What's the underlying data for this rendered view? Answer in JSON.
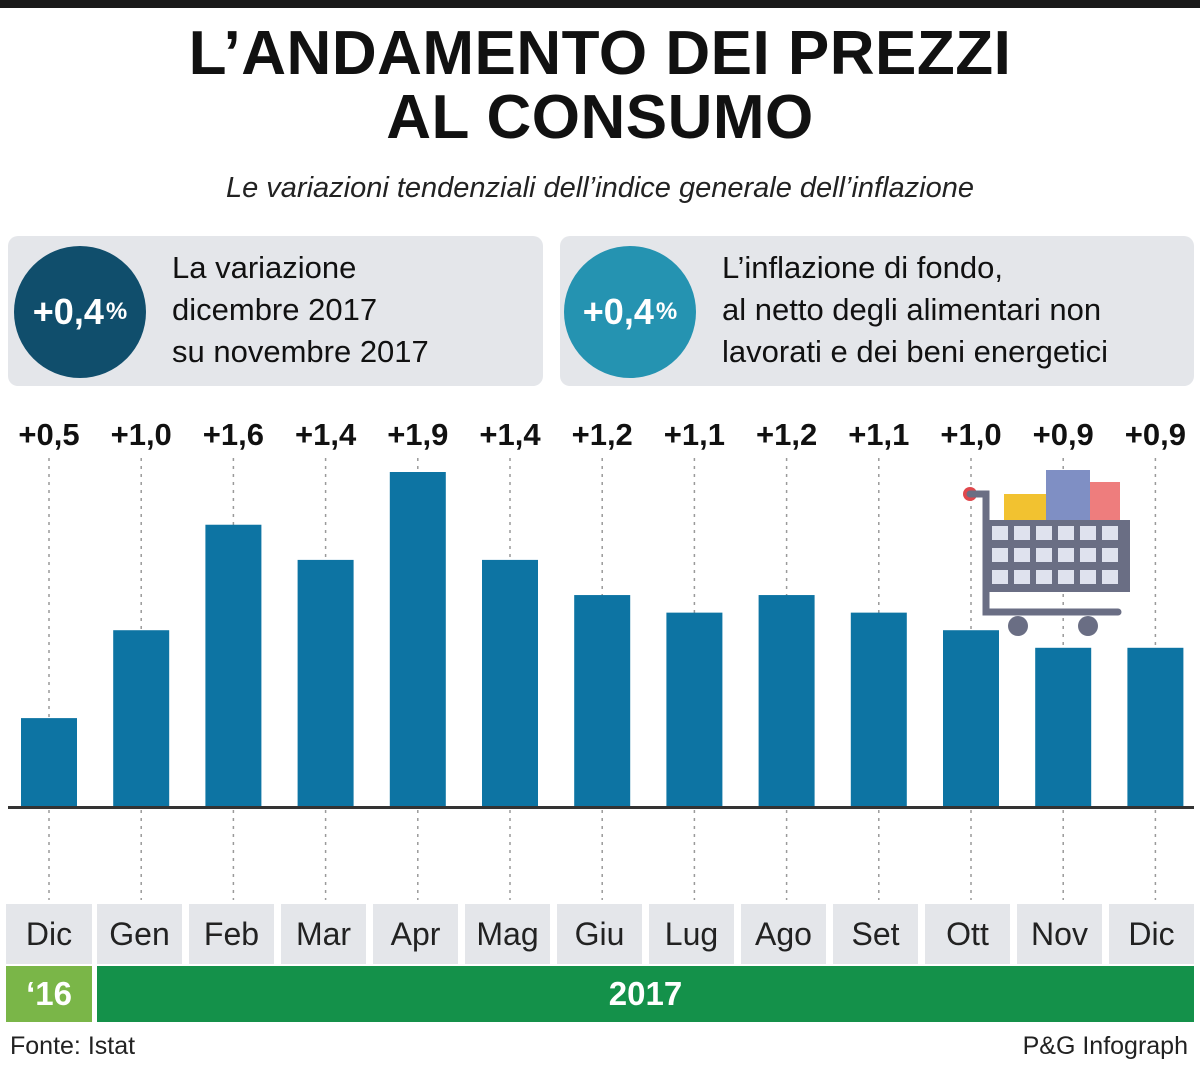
{
  "title_lines": [
    "L’ANDAMENTO DEI PREZZI",
    "AL CONSUMO"
  ],
  "subtitle": "Le variazioni tendenziali dell’indice generale dell’inflazione",
  "info": [
    {
      "value": "+0,4",
      "unit": "%",
      "lines": [
        "La variazione",
        "dicembre 2017",
        "su novembre 2017"
      ],
      "color": "#104e6c"
    },
    {
      "value": "+0,4",
      "unit": "%",
      "lines": [
        "L’inflazione di fondo,",
        "al netto degli alimentari non",
        "lavorati e dei beni energetici"
      ],
      "color": "#2593b1"
    }
  ],
  "chart_data": {
    "type": "bar",
    "categories": [
      "Dic",
      "Gen",
      "Feb",
      "Mar",
      "Apr",
      "Mag",
      "Giu",
      "Lug",
      "Ago",
      "Set",
      "Ott",
      "Nov",
      "Dic"
    ],
    "values": [
      0.5,
      1.0,
      1.6,
      1.4,
      1.9,
      1.4,
      1.2,
      1.1,
      1.2,
      1.1,
      1.0,
      0.9,
      0.9
    ],
    "labels": [
      "+0,5",
      "+1,0",
      "+1,6",
      "+1,4",
      "+1,9",
      "+1,4",
      "+1,2",
      "+1,1",
      "+1,2",
      "+1,1",
      "+1,0",
      "+0,9",
      "+0,9"
    ],
    "years": [
      {
        "label": "‘16",
        "color": "#7ab648"
      },
      {
        "label": "2017",
        "color": "#14914a"
      }
    ],
    "bar_color": "#0d74a3",
    "ylim": [
      0,
      1.9
    ],
    "grid": true
  },
  "source": "Fonte: Istat",
  "credit": "P&G Infograph",
  "icons": {
    "cart": "shopping-cart-icon"
  }
}
